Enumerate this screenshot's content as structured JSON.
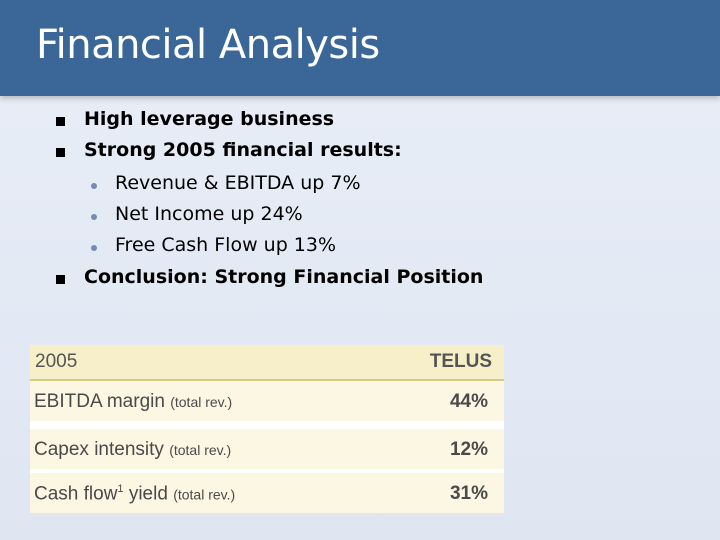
{
  "slide": {
    "title": "Financial Analysis",
    "accent_color": "#3a6797"
  },
  "bullets": [
    {
      "text": "High leverage business"
    },
    {
      "text": "Strong 2005 financial results:",
      "sub": [
        {
          "text": "Revenue & EBITDA up 7%"
        },
        {
          "text": "Net Income up 24%"
        },
        {
          "text": "Free Cash Flow up 13%"
        }
      ]
    },
    {
      "text": "Conclusion: Strong Financial Position"
    }
  ],
  "table": {
    "year": "2005",
    "company": "TELUS",
    "rows": [
      {
        "label": "EBITDA margin",
        "superscript": "",
        "label_rest": "",
        "note": "(total rev.)",
        "value": "44%"
      },
      {
        "label": "Capex intensity",
        "superscript": "",
        "label_rest": "",
        "note": "(total rev.)",
        "value": "12%"
      },
      {
        "label": "Cash flow",
        "superscript": "1",
        "label_rest": " yield",
        "note": "(total rev.)",
        "value": "31%"
      }
    ]
  }
}
